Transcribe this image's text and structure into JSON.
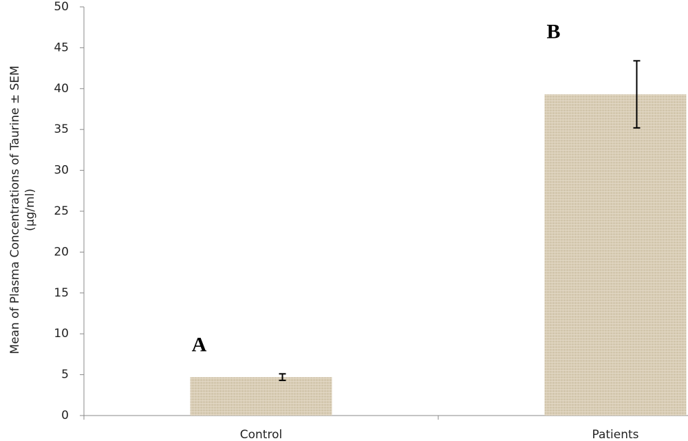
{
  "chart_data": {
    "type": "bar",
    "ylabel": [
      "Mean of Plasma Concentrations of Taurine ± SEM",
      "(µg/ml)"
    ],
    "categories": [
      "Control",
      "Patients"
    ],
    "values": [
      4.7,
      39.3
    ],
    "errors": [
      0.4,
      4.1
    ],
    "bar_labels": [
      "A",
      "B"
    ],
    "color": "#d8ccb5",
    "ylim": [
      0,
      50
    ],
    "yticks": [
      0,
      5,
      10,
      15,
      20,
      25,
      30,
      35,
      40,
      45,
      50
    ]
  }
}
